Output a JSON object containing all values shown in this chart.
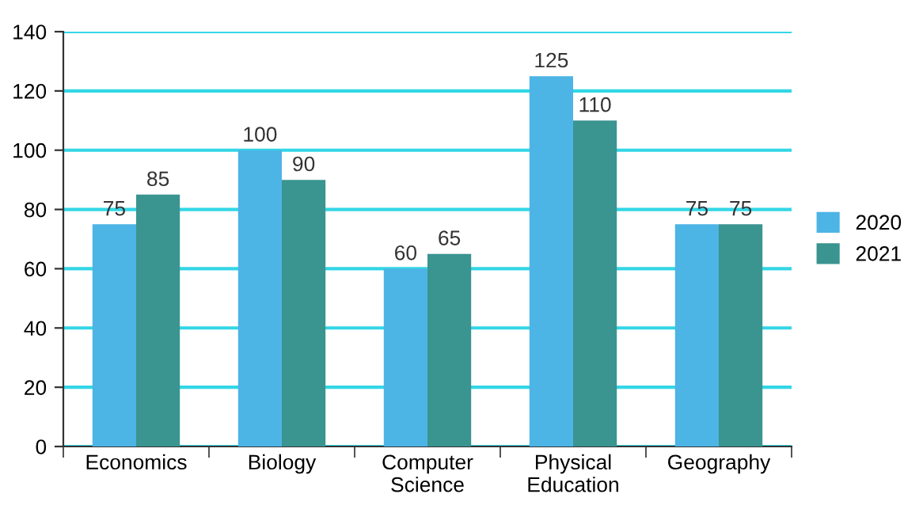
{
  "chart_data": {
    "type": "bar",
    "categories": [
      "Economics",
      "Biology",
      "Computer\nScience",
      "Physical\nEducation",
      "Geography"
    ],
    "series": [
      {
        "name": "2020",
        "color": "#4db4e6",
        "values": [
          75,
          100,
          60,
          125,
          75
        ]
      },
      {
        "name": "2021",
        "color": "#3a9490",
        "values": [
          85,
          90,
          65,
          110,
          75
        ]
      }
    ],
    "ylim": [
      0,
      140
    ],
    "yticks": [
      0,
      20,
      40,
      60,
      80,
      100,
      120,
      140
    ],
    "grid": "y",
    "legend": "right",
    "data_labels": true
  }
}
